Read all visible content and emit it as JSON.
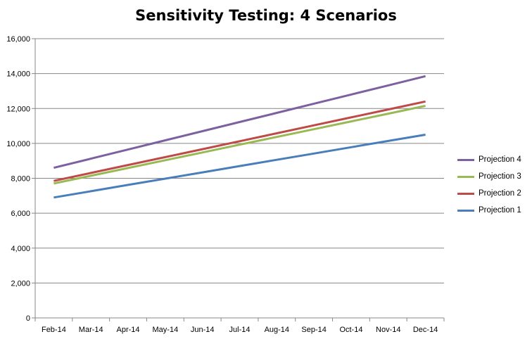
{
  "chart_data": {
    "type": "line",
    "title": "Sensitivity Testing: 4 Scenarios",
    "xlabel": "",
    "ylabel": "",
    "categories": [
      "Feb-14",
      "Mar-14",
      "Apr-14",
      "May-14",
      "Jun-14",
      "Jul-14",
      "Aug-14",
      "Sep-14",
      "Oct-14",
      "Nov-14",
      "Dec-14"
    ],
    "ylim": [
      0,
      16000
    ],
    "yticks": [
      0,
      2000,
      4000,
      6000,
      8000,
      10000,
      12000,
      14000,
      16000
    ],
    "ytick_labels": [
      "0",
      "2,000",
      "4,000",
      "6,000",
      "8,000",
      "10,000",
      "12,000",
      "14,000",
      "16,000"
    ],
    "grid": true,
    "legend_position": "right",
    "series": [
      {
        "name": "Projection 1",
        "color": "#4a7ebb",
        "values": [
          6900,
          7260,
          7620,
          7980,
          8340,
          8700,
          9060,
          9420,
          9780,
          10140,
          10500
        ]
      },
      {
        "name": "Projection 2",
        "color": "#be4b48",
        "values": [
          7850,
          8305,
          8760,
          9215,
          9670,
          10125,
          10580,
          11035,
          11490,
          11945,
          12400
        ]
      },
      {
        "name": "Projection 3",
        "color": "#98b954",
        "values": [
          7700,
          8145,
          8590,
          9035,
          9480,
          9925,
          10370,
          10815,
          11260,
          11705,
          12150
        ]
      },
      {
        "name": "Projection 4",
        "color": "#7d60a0",
        "values": [
          8600,
          9125,
          9650,
          10175,
          10700,
          11225,
          11750,
          12275,
          12800,
          13325,
          13850
        ]
      }
    ],
    "legend_order": [
      "Projection 4",
      "Projection 3",
      "Projection 2",
      "Projection 1"
    ]
  }
}
